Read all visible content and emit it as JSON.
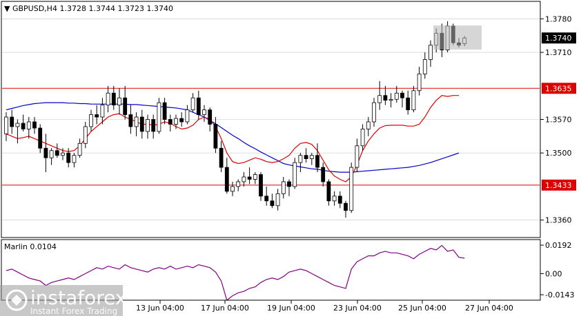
{
  "chart_data": {
    "type": "candlestick",
    "title": "GBPUSD,H4",
    "ohlc_readout": [
      "1.3728",
      "1.3744",
      "1.3723",
      "1.3740"
    ],
    "current_price": 1.374,
    "current_price_label": "1.3740",
    "y_range": [
      1.3325,
      1.3815
    ],
    "y_ticks": [
      {
        "value": 1.378,
        "label": "1.3780"
      },
      {
        "value": 1.371,
        "label": "1.3710"
      },
      {
        "value": 1.357,
        "label": "1.3570"
      },
      {
        "value": 1.35,
        "label": "1.3500"
      },
      {
        "value": 1.336,
        "label": "1.3360"
      }
    ],
    "levels": [
      {
        "value": 1.3635,
        "label": "1.3635",
        "color": "#dd0000"
      },
      {
        "value": 1.3433,
        "label": "1.3433",
        "color": "#dd0000"
      }
    ],
    "x_labels": [
      "13 Jun 04:00",
      "17 Jun 04:00",
      "19 Jun 04:00",
      "23 Jun 04:00",
      "25 Jun 04:00",
      "27 Jun 04:00"
    ],
    "candles": [
      [
        1.354,
        1.3585,
        1.3525,
        1.3575
      ],
      [
        1.3575,
        1.359,
        1.354,
        1.3555
      ],
      [
        1.3555,
        1.357,
        1.352,
        1.3562
      ],
      [
        1.3562,
        1.358,
        1.3545,
        1.355
      ],
      [
        1.355,
        1.3575,
        1.353,
        1.3565
      ],
      [
        1.3565,
        1.3575,
        1.354,
        1.3552
      ],
      [
        1.3552,
        1.356,
        1.35,
        1.351
      ],
      [
        1.351,
        1.354,
        1.346,
        1.349
      ],
      [
        1.349,
        1.351,
        1.3475,
        1.3505
      ],
      [
        1.3505,
        1.352,
        1.349,
        1.3495
      ],
      [
        1.3495,
        1.351,
        1.3485,
        1.35
      ],
      [
        1.35,
        1.351,
        1.347,
        1.348
      ],
      [
        1.348,
        1.35,
        1.347,
        1.3495
      ],
      [
        1.3495,
        1.353,
        1.349,
        1.352
      ],
      [
        1.352,
        1.3565,
        1.351,
        1.3555
      ],
      [
        1.3555,
        1.359,
        1.3545,
        1.358
      ],
      [
        1.358,
        1.36,
        1.356,
        1.3575
      ],
      [
        1.3575,
        1.3615,
        1.356,
        1.36
      ],
      [
        1.36,
        1.364,
        1.3585,
        1.3625
      ],
      [
        1.3625,
        1.364,
        1.359,
        1.36
      ],
      [
        1.36,
        1.3635,
        1.358,
        1.3615
      ],
      [
        1.3615,
        1.364,
        1.357,
        1.358
      ],
      [
        1.358,
        1.36,
        1.354,
        1.3555
      ],
      [
        1.3555,
        1.3585,
        1.3535,
        1.3575
      ],
      [
        1.3575,
        1.359,
        1.353,
        1.3545
      ],
      [
        1.3545,
        1.358,
        1.353,
        1.357
      ],
      [
        1.357,
        1.358,
        1.353,
        1.3545
      ],
      [
        1.3545,
        1.3615,
        1.354,
        1.3605
      ],
      [
        1.3605,
        1.3615,
        1.356,
        1.357
      ],
      [
        1.357,
        1.358,
        1.3545,
        1.356
      ],
      [
        1.356,
        1.358,
        1.355,
        1.3572
      ],
      [
        1.3572,
        1.3585,
        1.3555,
        1.3565
      ],
      [
        1.3565,
        1.36,
        1.356,
        1.359
      ],
      [
        1.359,
        1.3625,
        1.3585,
        1.3615
      ],
      [
        1.3615,
        1.363,
        1.357,
        1.358
      ],
      [
        1.358,
        1.36,
        1.3565,
        1.359
      ],
      [
        1.359,
        1.3595,
        1.3545,
        1.356
      ],
      [
        1.356,
        1.3575,
        1.35,
        1.351
      ],
      [
        1.351,
        1.3525,
        1.346,
        1.347
      ],
      [
        1.347,
        1.349,
        1.3415,
        1.342
      ],
      [
        1.342,
        1.344,
        1.341,
        1.343
      ],
      [
        1.343,
        1.3445,
        1.342,
        1.344
      ],
      [
        1.344,
        1.346,
        1.343,
        1.345
      ],
      [
        1.345,
        1.347,
        1.3435,
        1.3445
      ],
      [
        1.3445,
        1.346,
        1.3435,
        1.3455
      ],
      [
        1.3455,
        1.346,
        1.34,
        1.341
      ],
      [
        1.341,
        1.343,
        1.339,
        1.34
      ],
      [
        1.34,
        1.3415,
        1.3385,
        1.339
      ],
      [
        1.339,
        1.3425,
        1.338,
        1.3415
      ],
      [
        1.3415,
        1.345,
        1.3405,
        1.344
      ],
      [
        1.344,
        1.3445,
        1.341,
        1.343
      ],
      [
        1.343,
        1.349,
        1.3425,
        1.348
      ],
      [
        1.348,
        1.35,
        1.346,
        1.3495
      ],
      [
        1.3495,
        1.351,
        1.348,
        1.3488
      ],
      [
        1.3488,
        1.35,
        1.3475,
        1.3495
      ],
      [
        1.3495,
        1.352,
        1.346,
        1.347
      ],
      [
        1.347,
        1.348,
        1.343,
        1.344
      ],
      [
        1.344,
        1.3445,
        1.339,
        1.34
      ],
      [
        1.34,
        1.342,
        1.339,
        1.341
      ],
      [
        1.341,
        1.342,
        1.3385,
        1.3395
      ],
      [
        1.3395,
        1.34,
        1.3365,
        1.338
      ],
      [
        1.338,
        1.348,
        1.3375,
        1.347
      ],
      [
        1.347,
        1.353,
        1.346,
        1.3515
      ],
      [
        1.3515,
        1.356,
        1.3505,
        1.355
      ],
      [
        1.355,
        1.3575,
        1.3535,
        1.3565
      ],
      [
        1.3565,
        1.3615,
        1.3555,
        1.3605
      ],
      [
        1.3605,
        1.365,
        1.359,
        1.362
      ],
      [
        1.362,
        1.364,
        1.36,
        1.361
      ],
      [
        1.361,
        1.3625,
        1.3595,
        1.3612
      ],
      [
        1.3612,
        1.364,
        1.3605,
        1.3625
      ],
      [
        1.3625,
        1.363,
        1.3595,
        1.3615
      ],
      [
        1.3615,
        1.363,
        1.358,
        1.359
      ],
      [
        1.359,
        1.364,
        1.3585,
        1.363
      ],
      [
        1.363,
        1.368,
        1.362,
        1.3665
      ],
      [
        1.3665,
        1.371,
        1.3655,
        1.3695
      ],
      [
        1.3695,
        1.3735,
        1.368,
        1.3725
      ],
      [
        1.3725,
        1.376,
        1.371,
        1.375
      ],
      [
        1.375,
        1.377,
        1.37,
        1.3715
      ],
      [
        1.3715,
        1.3775,
        1.371,
        1.3765
      ],
      [
        1.3765,
        1.377,
        1.3725,
        1.373
      ],
      [
        1.373,
        1.374,
        1.372,
        1.3725
      ],
      [
        1.3728,
        1.3744,
        1.3723,
        1.374
      ]
    ],
    "ma_red": [
      1.354,
      1.3535,
      1.353,
      1.3532,
      1.3535,
      1.353,
      1.3525,
      1.352,
      1.3515,
      1.351,
      1.3505,
      1.3503,
      1.3505,
      1.3515,
      1.353,
      1.3545,
      1.3555,
      1.3565,
      1.3575,
      1.358,
      1.3582,
      1.3575,
      1.357,
      1.3565,
      1.356,
      1.356,
      1.3558,
      1.356,
      1.3565,
      1.3562,
      1.3555,
      1.355,
      1.3552,
      1.3558,
      1.357,
      1.3575,
      1.357,
      1.3555,
      1.353,
      1.35,
      1.3482,
      1.3478,
      1.348,
      1.3485,
      1.349,
      1.3487,
      1.3482,
      1.348,
      1.3482,
      1.3488,
      1.3495,
      1.351,
      1.352,
      1.3522,
      1.3518,
      1.3505,
      1.3485,
      1.3465,
      1.3452,
      1.3445,
      1.344,
      1.345,
      1.3475,
      1.3505,
      1.3525,
      1.354,
      1.3552,
      1.3557,
      1.3558,
      1.3558,
      1.3558,
      1.3556,
      1.3556,
      1.356,
      1.3575,
      1.3595,
      1.361,
      1.362,
      1.3618,
      1.362,
      1.362
    ],
    "ma_blue": [
      1.359,
      1.3593,
      1.3596,
      1.3599,
      1.3601,
      1.3603,
      1.3604,
      1.3605,
      1.3605,
      1.3605,
      1.3605,
      1.3604,
      1.3604,
      1.3603,
      1.3603,
      1.3602,
      1.3602,
      1.3602,
      1.3602,
      1.3602,
      1.3602,
      1.3602,
      1.3601,
      1.3601,
      1.36,
      1.3599,
      1.3598,
      1.3597,
      1.3596,
      1.3595,
      1.3594,
      1.3592,
      1.359,
      1.3585,
      1.358,
      1.3575,
      1.3568,
      1.3561,
      1.3553,
      1.3545,
      1.3537,
      1.353,
      1.3522,
      1.3515,
      1.3509,
      1.3502,
      1.3496,
      1.349,
      1.3484,
      1.3478,
      1.3475,
      1.3473,
      1.3471,
      1.3469,
      1.3467,
      1.3466,
      1.3464,
      1.3462,
      1.3461,
      1.346,
      1.346,
      1.346,
      1.3461,
      1.3462,
      1.3463,
      1.3464,
      1.3465,
      1.3466,
      1.3467,
      1.3468,
      1.3469,
      1.347,
      1.3472,
      1.3474,
      1.3477,
      1.348,
      1.3484,
      1.3488,
      1.3492,
      1.3496,
      1.35
    ],
    "oscillator": {
      "name": "Marlin",
      "value_label": "0.0104",
      "y_range": [
        -0.0175,
        0.0225
      ],
      "y_ticks": [
        {
          "value": 0.0192,
          "label": "0.0192"
        },
        {
          "value": 0.0,
          "label": "0.00"
        },
        {
          "value": -0.0143,
          "label": "-0.0143"
        }
      ],
      "values": [
        0.002,
        0.003,
        0.001,
        -0.001,
        -0.003,
        -0.004,
        -0.005,
        -0.008,
        -0.006,
        -0.005,
        -0.004,
        -0.003,
        -0.004,
        -0.002,
        0.0,
        0.002,
        0.004,
        0.003,
        0.005,
        0.004,
        0.003,
        0.006,
        0.004,
        0.003,
        0.002,
        0.001,
        0.003,
        0.004,
        0.003,
        0.005,
        0.003,
        0.004,
        0.005,
        0.004,
        0.006,
        0.005,
        0.004,
        0.001,
        -0.005,
        -0.018,
        -0.015,
        -0.013,
        -0.012,
        -0.01,
        -0.009,
        -0.006,
        -0.004,
        -0.003,
        -0.004,
        -0.002,
        0.001,
        0.002,
        0.003,
        0.002,
        0.0,
        -0.002,
        -0.004,
        -0.006,
        -0.008,
        -0.009,
        -0.01,
        0.003,
        0.008,
        0.01,
        0.012,
        0.012,
        0.014,
        0.015,
        0.014,
        0.014,
        0.013,
        0.012,
        0.01,
        0.013,
        0.015,
        0.017,
        0.016,
        0.019,
        0.015,
        0.016,
        0.011,
        0.0104
      ]
    }
  },
  "watermark": {
    "brand": "instaforex",
    "tagline": "Instant Forex Trading"
  },
  "colors": {
    "ma_red": "#dd0000",
    "ma_blue": "#0000cc",
    "oscillator": "#800080",
    "level": "#dd0000",
    "frame": "#000000",
    "grid": "#c8c8c8"
  }
}
